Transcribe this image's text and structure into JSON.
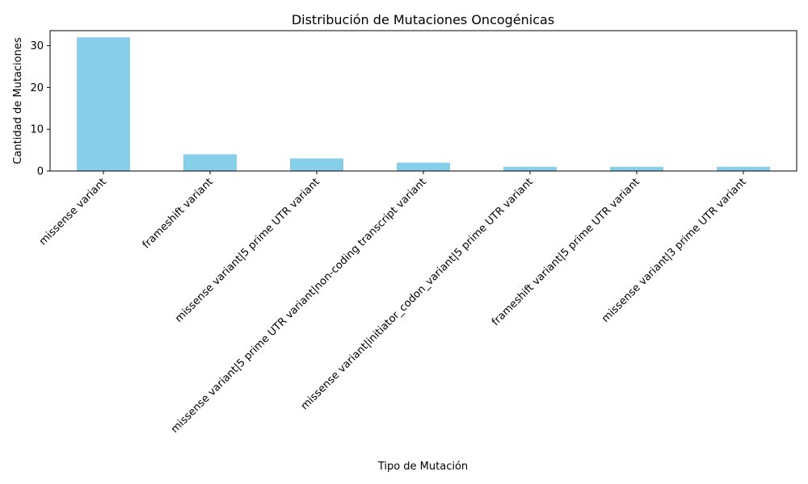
{
  "chart_data": {
    "type": "bar",
    "title": "Distribución de Mutaciones Oncogénicas",
    "xlabel": "Tipo de Mutación",
    "ylabel": "Cantidad de Mutaciones",
    "categories": [
      "missense variant",
      "frameshift variant",
      "missense variant|5 prime UTR variant",
      "missense variant|5 prime UTR variant|non-coding transcript variant",
      "missense variant|initiator_codon_variant|5 prime UTR variant",
      "frameshift variant|5 prime UTR variant",
      "missense variant|3 prime UTR variant"
    ],
    "values": [
      32,
      4,
      3,
      2,
      1,
      1,
      1
    ],
    "ylim": [
      0,
      33.6
    ],
    "yticks": [
      0,
      10,
      20,
      30
    ],
    "bar_color": "#87ceeb",
    "grid": false,
    "legend": false
  }
}
